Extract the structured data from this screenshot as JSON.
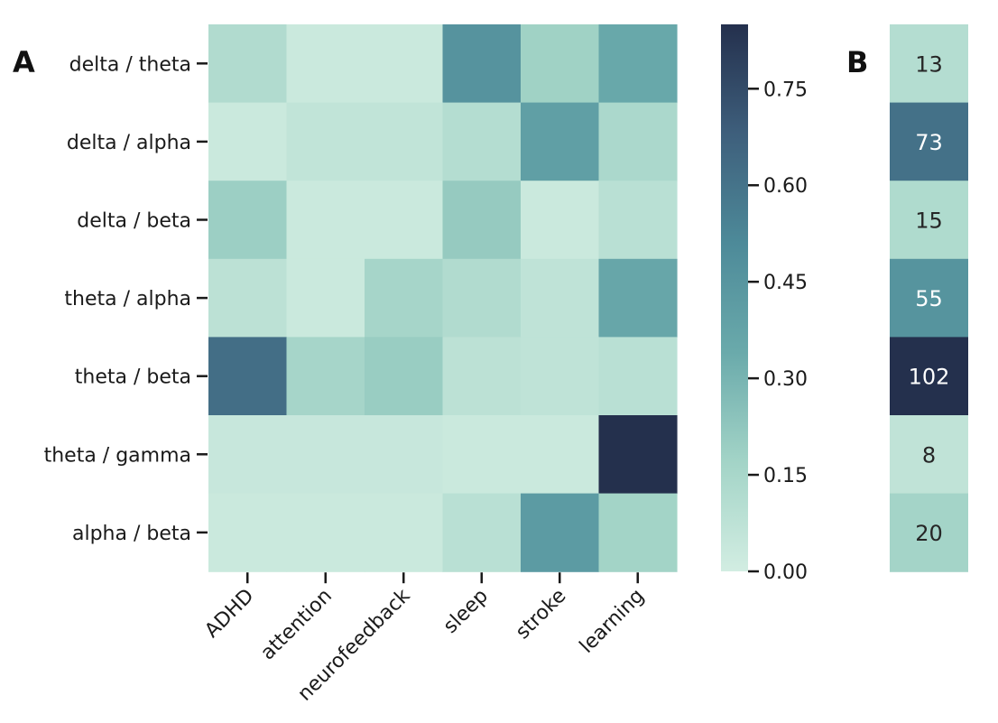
{
  "panel_a_label": "A",
  "panel_b_label": "B",
  "chart_data": [
    {
      "type": "heatmap",
      "name": "band-ratio-by-topic",
      "title": "",
      "rows": [
        "delta / theta",
        "delta / alpha",
        "delta / beta",
        "theta / alpha",
        "theta / beta",
        "theta / gamma",
        "alpha / beta"
      ],
      "columns": [
        "ADHD",
        "attention",
        "neurofeedback",
        "sleep",
        "stroke",
        "learning"
      ],
      "values": [
        [
          0.12,
          0.03,
          0.03,
          0.46,
          0.18,
          0.35
        ],
        [
          0.03,
          0.06,
          0.06,
          0.11,
          0.4,
          0.14
        ],
        [
          0.19,
          0.03,
          0.03,
          0.21,
          0.03,
          0.09
        ],
        [
          0.08,
          0.03,
          0.16,
          0.12,
          0.07,
          0.36
        ],
        [
          0.62,
          0.16,
          0.2,
          0.08,
          0.07,
          0.09
        ],
        [
          0.04,
          0.04,
          0.04,
          0.03,
          0.03,
          0.85
        ],
        [
          0.03,
          0.03,
          0.03,
          0.09,
          0.42,
          0.17
        ]
      ],
      "colorbar": {
        "min": 0.0,
        "max": 0.85,
        "ticks": [
          0.0,
          0.15,
          0.3,
          0.45,
          0.6,
          0.75
        ],
        "tick_labels": [
          "0.00",
          "0.15",
          "0.30",
          "0.45",
          "0.60",
          "0.75"
        ]
      },
      "colormap": [
        "#d2ede2",
        "#a3d4c7",
        "#6aaaab",
        "#4d8a99",
        "#3e5f7c",
        "#24304d"
      ]
    },
    {
      "type": "heatmap",
      "name": "band-ratio-counts",
      "title": "",
      "rows": [
        "delta / theta",
        "delta / alpha",
        "delta / beta",
        "theta / alpha",
        "theta / beta",
        "theta / gamma",
        "alpha / beta"
      ],
      "values": [
        13,
        73,
        15,
        55,
        102,
        8,
        20
      ],
      "labels": [
        "13",
        "73",
        "15",
        "55",
        "102",
        "8",
        "20"
      ],
      "min": 0,
      "max": 102
    }
  ]
}
